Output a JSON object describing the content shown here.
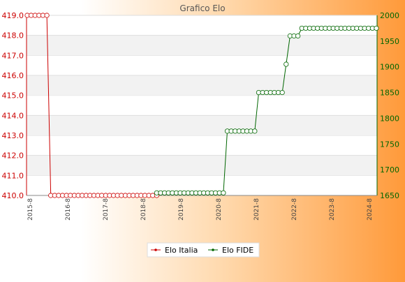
{
  "chart_data": {
    "type": "line",
    "title": "Grafico Elo",
    "left_axis": {
      "ylim": [
        410.0,
        419.0
      ],
      "ticks": [
        "410.0",
        "411.0",
        "412.0",
        "413.0",
        "414.0",
        "415.0",
        "416.0",
        "417.0",
        "418.0",
        "419.0"
      ],
      "color": "#cc0000"
    },
    "right_axis": {
      "ylim": [
        1650,
        2000
      ],
      "ticks": [
        "1650",
        "1700",
        "1750",
        "1800",
        "1850",
        "1900",
        "1950",
        "2000"
      ],
      "color": "#006600"
    },
    "x_count": 90,
    "x_tick_labels": [
      "2015-8",
      "2016-8",
      "2017-8",
      "2018-8",
      "2019-8",
      "2020-8",
      "2021-8",
      "2022-8",
      "2023-8",
      "2024-8"
    ],
    "grid": true,
    "legend_position": "bottom",
    "series": [
      {
        "name": "Elo Italia",
        "axis": "left",
        "color": "#cc0000",
        "segments": [
          {
            "from": 0,
            "to": 5,
            "value": 419.0
          },
          {
            "from": 6,
            "to": 33,
            "value": 410.0
          }
        ]
      },
      {
        "name": "Elo FIDE",
        "axis": "right",
        "color": "#006600",
        "segments": [
          {
            "from": 33,
            "to": 50,
            "value": 1655
          },
          {
            "from": 51,
            "to": 58,
            "value": 1775
          },
          {
            "from": 59,
            "to": 65,
            "value": 1850
          },
          {
            "from": 66,
            "to": 66,
            "value": 1905
          },
          {
            "from": 67,
            "to": 69,
            "value": 1960
          },
          {
            "from": 70,
            "to": 89,
            "value": 1975
          }
        ]
      }
    ]
  }
}
